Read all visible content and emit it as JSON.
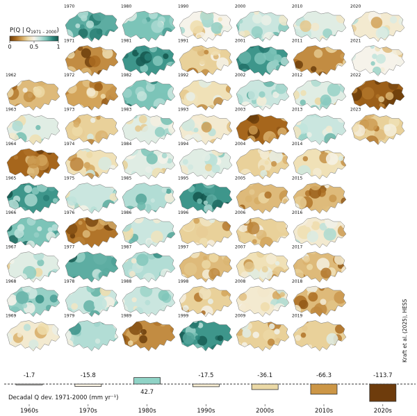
{
  "chart_data": {
    "type": "small-multiple-maps-with-bar",
    "colorbar": {
      "title": "P(Q | Q",
      "title_sub": "1971 – 2000",
      "title_end": ")",
      "ticks": [
        "0",
        "0.5",
        "1"
      ],
      "range": [
        0,
        1
      ],
      "colors": [
        "#6b3d0b",
        "#a8681d",
        "#d3a45a",
        "#eedcaa",
        "#f6f3ea",
        "#bfe3dc",
        "#7cc4b8",
        "#2f8a80",
        "#14574e"
      ]
    },
    "maps": [
      {
        "year": "1962",
        "value": 0.3
      },
      {
        "year": "1963",
        "value": 0.55
      },
      {
        "year": "1964",
        "value": 0.12
      },
      {
        "year": "1965",
        "value": 0.85
      },
      {
        "year": "1966",
        "value": 0.75
      },
      {
        "year": "1967",
        "value": 0.55
      },
      {
        "year": "1968",
        "value": 0.7
      },
      {
        "year": "1969",
        "value": 0.45
      },
      {
        "year": "1970",
        "value": 0.8
      },
      {
        "year": "1971",
        "value": 0.2
      },
      {
        "year": "1972",
        "value": 0.25
      },
      {
        "year": "1973",
        "value": 0.35
      },
      {
        "year": "1974",
        "value": 0.4
      },
      {
        "year": "1975",
        "value": 0.6
      },
      {
        "year": "1976",
        "value": 0.15
      },
      {
        "year": "1977",
        "value": 0.8
      },
      {
        "year": "1978",
        "value": 0.6
      },
      {
        "year": "1979",
        "value": 0.65
      },
      {
        "year": "1980",
        "value": 0.75
      },
      {
        "year": "1981",
        "value": 0.85
      },
      {
        "year": "1982",
        "value": 0.75
      },
      {
        "year": "1983",
        "value": 0.55
      },
      {
        "year": "1984",
        "value": 0.55
      },
      {
        "year": "1985",
        "value": 0.65
      },
      {
        "year": "1986",
        "value": 0.6
      },
      {
        "year": "1987",
        "value": 0.65
      },
      {
        "year": "1988",
        "value": 0.6
      },
      {
        "year": "1989",
        "value": 0.2
      },
      {
        "year": "1990",
        "value": 0.5
      },
      {
        "year": "1991",
        "value": 0.35
      },
      {
        "year": "1992",
        "value": 0.4
      },
      {
        "year": "1993",
        "value": 0.45
      },
      {
        "year": "1994",
        "value": 0.55
      },
      {
        "year": "1995",
        "value": 0.85
      },
      {
        "year": "1996",
        "value": 0.35
      },
      {
        "year": "1997",
        "value": 0.3
      },
      {
        "year": "1998",
        "value": 0.35
      },
      {
        "year": "1999",
        "value": 0.85
      },
      {
        "year": "2000",
        "value": 0.6
      },
      {
        "year": "2001",
        "value": 0.85
      },
      {
        "year": "2002",
        "value": 0.6
      },
      {
        "year": "2003",
        "value": 0.12
      },
      {
        "year": "2004",
        "value": 0.35
      },
      {
        "year": "2005",
        "value": 0.3
      },
      {
        "year": "2006",
        "value": 0.35
      },
      {
        "year": "2007",
        "value": 0.4
      },
      {
        "year": "2008",
        "value": 0.45
      },
      {
        "year": "2009",
        "value": 0.35
      },
      {
        "year": "2010",
        "value": 0.55
      },
      {
        "year": "2011",
        "value": 0.2
      },
      {
        "year": "2012",
        "value": 0.55
      },
      {
        "year": "2013",
        "value": 0.6
      },
      {
        "year": "2014",
        "value": 0.4
      },
      {
        "year": "2015",
        "value": 0.3
      },
      {
        "year": "2016",
        "value": 0.45
      },
      {
        "year": "2017",
        "value": 0.3
      },
      {
        "year": "2018",
        "value": 0.3
      },
      {
        "year": "2019",
        "value": 0.35
      },
      {
        "year": "2020",
        "value": 0.45
      },
      {
        "year": "2021",
        "value": 0.5
      },
      {
        "year": "2022",
        "value": 0.1
      },
      {
        "year": "2023",
        "value": 0.35
      }
    ],
    "bars": {
      "type": "bar",
      "ylabel": "Decadal Q dev. 1971-2000 (mm yr⁻¹)",
      "categories": [
        "1960s",
        "1970s",
        "1980s",
        "1990s",
        "2000s",
        "2010s",
        "2020s"
      ],
      "values": [
        -1.7,
        -15.8,
        42.7,
        -17.5,
        -36.1,
        -66.3,
        -113.7
      ],
      "labels": [
        "-1.7",
        "-15.8",
        "42.7",
        "-17.5",
        "-36.1",
        "-66.3",
        "-113.7"
      ],
      "colors": [
        "#f7f4ee",
        "#faf3e4",
        "#8fd3c6",
        "#f8eed3",
        "#ebd9a6",
        "#cc9646",
        "#6e3c0c"
      ]
    },
    "credit": "Kraft et al. (2025), HESS"
  }
}
